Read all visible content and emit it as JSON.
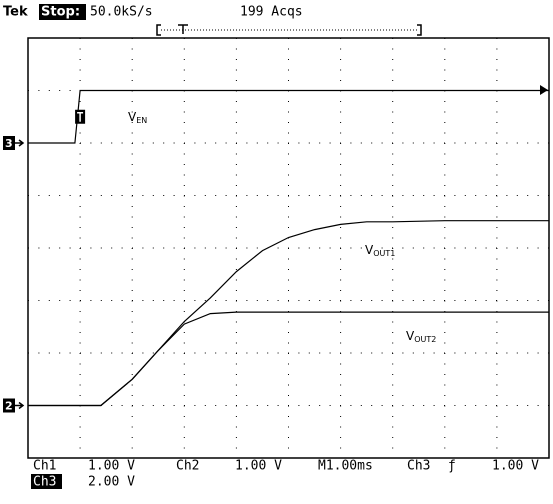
{
  "header": {
    "brand": "Tek",
    "state": "Stop:",
    "sample_rate": "50.0kS/s",
    "acquisitions": "199 Acqs"
  },
  "chart_data": {
    "type": "line",
    "x": [
      0,
      0.9,
      1.0,
      1.4,
      2,
      2.5,
      3,
      3.5,
      4,
      4.5,
      5,
      5.5,
      6,
      6.5,
      7,
      8,
      9,
      10
    ],
    "xlim": [
      0,
      10
    ],
    "ylim": [
      0,
      8
    ],
    "xticks": [
      0,
      1,
      2,
      3,
      4,
      5,
      6,
      7,
      8,
      9,
      10
    ],
    "yticks": [
      0,
      1,
      2,
      3,
      4,
      5,
      6,
      7,
      8
    ],
    "grid": true,
    "series": [
      {
        "name": "V",
        "subscript": "EN",
        "color": "#000000",
        "values": [
          6,
          6,
          7,
          7,
          7,
          7,
          7,
          7,
          7,
          7,
          7,
          7,
          7,
          7,
          7,
          7,
          7,
          7
        ]
      },
      {
        "name": "V",
        "subscript": "OUT1",
        "color": "#000000",
        "values": [
          1,
          1,
          1,
          1,
          1.5,
          2.05,
          2.6,
          3.05,
          3.55,
          3.95,
          4.2,
          4.35,
          4.45,
          4.5,
          4.5,
          4.52,
          4.52,
          4.52
        ]
      },
      {
        "name": "V",
        "subscript": "OUT2",
        "color": "#000000",
        "values": [
          1,
          1,
          1,
          1,
          1.5,
          2.05,
          2.55,
          2.75,
          2.78,
          2.78,
          2.78,
          2.78,
          2.78,
          2.78,
          2.78,
          2.78,
          2.78,
          2.78
        ]
      }
    ]
  },
  "channel_markers": [
    {
      "label": "3",
      "level": 6
    },
    {
      "label": "2",
      "level": 1
    }
  ],
  "footer": {
    "ch1": "Ch1",
    "ch1_scale": "1.00 V",
    "ch2": "Ch2",
    "ch2_scale": "1.00 V",
    "timebase": "M1.00ms",
    "trigger_source": "Ch3",
    "trigger_slope": "ƒ",
    "trigger_level": "1.00 V",
    "ch3": "Ch3",
    "ch3_scale": "2.00 V"
  }
}
